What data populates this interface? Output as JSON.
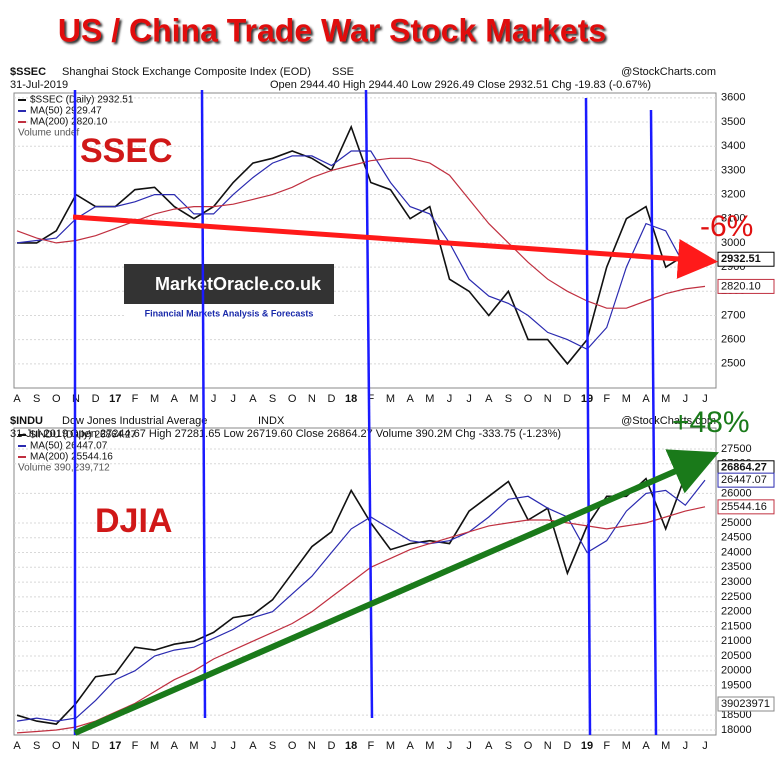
{
  "title": "US / China Trade War Stock Markets",
  "logo": {
    "name": "MarketOracle.co.uk",
    "tagline": "Financial Markets Analysis & Forecasts"
  },
  "chart_data": [
    {
      "type": "line",
      "symbol": "$SSEC",
      "name": "Shanghai Stock Exchange Composite Index (EOD)",
      "exchange": "SSE",
      "credit": "@StockCharts.com",
      "date": "31-Jul-2019",
      "quote": "Open 2944.40   High 2944.40   Low 2926.49   Close 2932.51   Chg -19.83 (-0.67%)",
      "volume_label": "Volume undef",
      "label": "SSEC",
      "change": "-6%",
      "categories": [
        "A",
        "S",
        "O",
        "N",
        "D",
        "17",
        "F",
        "M",
        "A",
        "M",
        "J",
        "J",
        "A",
        "S",
        "O",
        "N",
        "D",
        "18",
        "F",
        "M",
        "A",
        "M",
        "J",
        "J",
        "A",
        "S",
        "O",
        "N",
        "D",
        "19",
        "F",
        "M",
        "A",
        "M",
        "J",
        "J"
      ],
      "ylim": [
        2400,
        3620
      ],
      "yticks": [
        2500,
        2600,
        2700,
        2800,
        2900,
        3000,
        3100,
        3200,
        3300,
        3400,
        3500,
        3600
      ],
      "grid": true,
      "series": [
        {
          "name": "$SSEC (Daily) 2932.51",
          "color": "#111111",
          "end_label": "2932.51",
          "values": [
            3000,
            3000,
            3050,
            3200,
            3150,
            3150,
            3220,
            3230,
            3150,
            3100,
            3150,
            3250,
            3330,
            3350,
            3380,
            3350,
            3300,
            3480,
            3250,
            3220,
            3100,
            3150,
            2850,
            2800,
            2700,
            2800,
            2600,
            2600,
            2500,
            2600,
            2900,
            3100,
            3150,
            2900,
            2950,
            2932.51
          ]
        },
        {
          "name": "MA(50) 2929.47",
          "color": "#2a2ab0",
          "values": [
            3000,
            3010,
            3020,
            3100,
            3150,
            3150,
            3170,
            3200,
            3200,
            3120,
            3120,
            3200,
            3270,
            3330,
            3360,
            3360,
            3320,
            3380,
            3380,
            3250,
            3150,
            3120,
            3000,
            2850,
            2780,
            2750,
            2700,
            2630,
            2600,
            2560,
            2650,
            2900,
            3080,
            3050,
            2900,
            2929.47
          ]
        },
        {
          "name": "MA(200) 2820.10",
          "color": "#c03040",
          "end_label": "2820.10",
          "values": [
            3050,
            3020,
            3000,
            3010,
            3030,
            3060,
            3090,
            3120,
            3140,
            3150,
            3150,
            3160,
            3180,
            3200,
            3230,
            3270,
            3300,
            3320,
            3340,
            3350,
            3350,
            3330,
            3280,
            3180,
            3080,
            3000,
            2920,
            2850,
            2800,
            2760,
            2730,
            2730,
            2760,
            2790,
            2810,
            2820.1
          ]
        }
      ]
    },
    {
      "type": "line",
      "symbol": "$INDU",
      "name": "Dow Jones Industrial Average",
      "exchange": "INDX",
      "credit": "@StockCharts.com",
      "date": "31-Jul-2019",
      "quote": "Open 27244.67   High 27281.65   Low 26719.60   Close 26864.27   Volume 390.2M   Chg -333.75 (-1.23%)",
      "volume_label": "Volume 390,239,712",
      "volume_tag": "39023971",
      "label": "DJIA",
      "change": "+48%",
      "categories": [
        "A",
        "S",
        "O",
        "N",
        "D",
        "17",
        "F",
        "M",
        "A",
        "M",
        "J",
        "J",
        "A",
        "S",
        "O",
        "N",
        "D",
        "18",
        "F",
        "M",
        "A",
        "M",
        "J",
        "J",
        "A",
        "S",
        "O",
        "N",
        "D",
        "19",
        "F",
        "M",
        "A",
        "M",
        "J",
        "J"
      ],
      "ylim": [
        17830,
        28210
      ],
      "yticks": [
        18000,
        18500,
        19500,
        20000,
        20500,
        21000,
        21500,
        22000,
        22500,
        23000,
        23500,
        24000,
        24500,
        25000,
        26000,
        27000,
        27500
      ],
      "grid": true,
      "series": [
        {
          "name": "$INDU (Daily) 26864.27",
          "color": "#111111",
          "end_label": "26864.27",
          "values": [
            18500,
            18300,
            18200,
            18900,
            19800,
            19900,
            20800,
            20700,
            20900,
            21000,
            21300,
            21800,
            21900,
            22400,
            23300,
            24200,
            24700,
            26100,
            25000,
            24100,
            24300,
            24400,
            24300,
            25400,
            25900,
            26400,
            25100,
            25500,
            23300,
            24900,
            25900,
            25900,
            26500,
            24800,
            26600,
            26864.27
          ]
        },
        {
          "name": "MA(50) 26447.07",
          "color": "#2a2ab0",
          "end_label": "26447.07",
          "values": [
            18300,
            18400,
            18300,
            18400,
            19000,
            19700,
            20000,
            20500,
            20700,
            20800,
            21100,
            21400,
            21800,
            22000,
            22600,
            23200,
            24000,
            24800,
            25200,
            24800,
            24400,
            24300,
            24400,
            24700,
            25200,
            25800,
            25900,
            25500,
            25200,
            24000,
            24400,
            25400,
            26000,
            26100,
            25600,
            26447.07
          ]
        },
        {
          "name": "MA(200) 25544.16",
          "color": "#c03040",
          "end_label": "25544.16",
          "values": [
            17900,
            17950,
            18000,
            18100,
            18300,
            18600,
            18900,
            19300,
            19700,
            20000,
            20400,
            20700,
            21000,
            21300,
            21600,
            22000,
            22500,
            23000,
            23500,
            23800,
            24100,
            24300,
            24500,
            24700,
            24900,
            25000,
            25100,
            25100,
            25000,
            24900,
            24800,
            24900,
            25000,
            25200,
            25400,
            25544.16
          ]
        }
      ]
    }
  ]
}
